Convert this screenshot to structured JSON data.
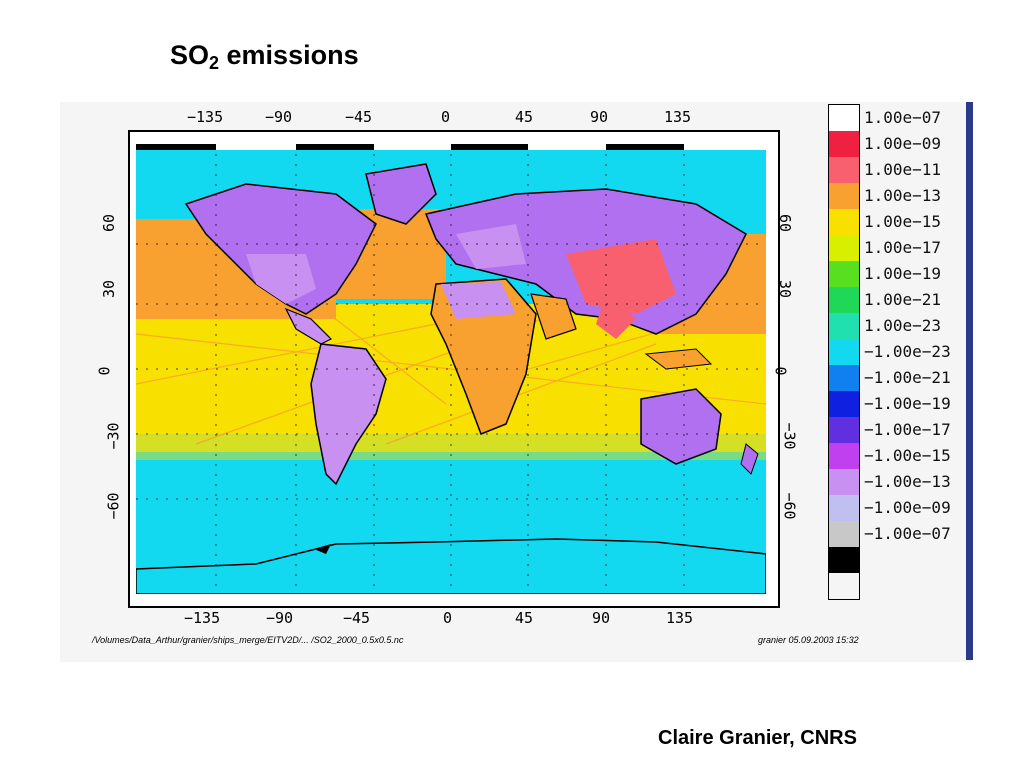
{
  "title": {
    "prefix": "SO",
    "subscript": "2",
    "suffix": " emissions"
  },
  "map": {
    "x_ticks_top": [
      "−135",
      "−90",
      "−45",
      "0",
      "45",
      "90",
      "135"
    ],
    "x_ticks_bottom": [
      "−135",
      "−90",
      "−45",
      "0",
      "45",
      "90",
      "135"
    ],
    "y_ticks_left": [
      "60",
      "30",
      "0",
      "−30",
      "−60"
    ],
    "y_ticks_right": [
      "60",
      "30",
      "0",
      "−30",
      "−60"
    ],
    "ocean_color": "#12d8f0",
    "land_color": "#b070f0",
    "high_color": "#f8a030",
    "shipping_color": "#f8e000"
  },
  "colorbar": {
    "labels": [
      "1.00e−07",
      "1.00e−09",
      "1.00e−11",
      "1.00e−13",
      "1.00e−15",
      "1.00e−17",
      "1.00e−19",
      "1.00e−21",
      "1.00e−23",
      "−1.00e−23",
      "−1.00e−21",
      "−1.00e−19",
      "−1.00e−17",
      "−1.00e−15",
      "−1.00e−13",
      "−1.00e−09",
      "−1.00e−07",
      ""
    ],
    "colors": [
      "#ffffff",
      "#f02040",
      "#f86070",
      "#f8a030",
      "#f8e000",
      "#d8f000",
      "#58e020",
      "#20d858",
      "#20e0b0",
      "#12d8f0",
      "#1080f0",
      "#1020e0",
      "#6030e0",
      "#c040f0",
      "#c890f0",
      "#c0c0f0",
      "#c8c8c8",
      "#000000"
    ]
  },
  "footer": {
    "path": "/Volumes/Data_Arthur/granier/ships_merge/EITV2D/... /SO2_2000_0.5x0.5.nc",
    "stamp": "granier 05.09.2003 15:32"
  },
  "credit": "Claire Granier, CNRS"
}
